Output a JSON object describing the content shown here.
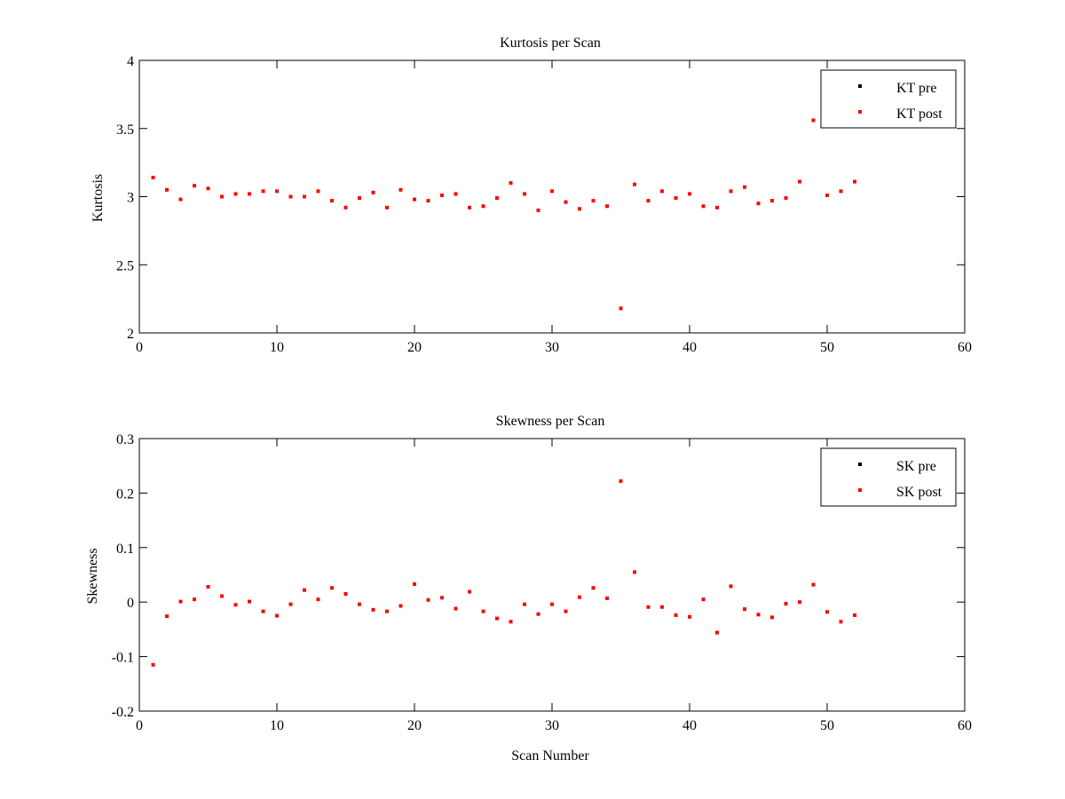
{
  "chart_data": [
    {
      "type": "scatter",
      "title": "Kurtosis per Scan",
      "xlabel": "",
      "ylabel": "Kurtosis",
      "xlim": [
        0,
        60
      ],
      "ylim": [
        2,
        4
      ],
      "xticks": [
        "0",
        "10",
        "20",
        "30",
        "40",
        "50",
        "60"
      ],
      "yticks": [
        "2",
        "2.5",
        "3",
        "3.5",
        "4"
      ],
      "legend_position": "top-right",
      "grid": false,
      "series": [
        {
          "name": "KT pre",
          "color": "#000000",
          "marker": "dot",
          "x": [],
          "y": []
        },
        {
          "name": "KT post",
          "color": "#ff0000",
          "marker": "dot",
          "x": [
            1,
            2,
            3,
            4,
            5,
            6,
            7,
            8,
            9,
            10,
            11,
            12,
            13,
            14,
            15,
            16,
            17,
            18,
            19,
            20,
            21,
            22,
            23,
            24,
            25,
            26,
            27,
            28,
            29,
            30,
            31,
            32,
            33,
            34,
            35,
            36,
            37,
            38,
            39,
            40,
            41,
            42,
            43,
            44,
            45,
            46,
            47,
            48,
            49,
            50,
            51,
            52
          ],
          "y": [
            3.14,
            3.05,
            2.98,
            3.08,
            3.06,
            3.0,
            3.02,
            3.02,
            3.04,
            3.04,
            3.0,
            3.0,
            3.04,
            2.97,
            2.92,
            2.99,
            3.03,
            2.92,
            3.05,
            2.98,
            2.97,
            3.01,
            3.02,
            2.92,
            2.93,
            2.99,
            3.1,
            3.02,
            2.9,
            3.04,
            2.96,
            2.91,
            2.97,
            2.93,
            2.18,
            3.09,
            2.97,
            3.04,
            2.99,
            3.02,
            2.93,
            2.92,
            3.04,
            3.07,
            2.95,
            2.97,
            2.99,
            3.11,
            3.56,
            3.01,
            3.04,
            3.11
          ]
        }
      ]
    },
    {
      "type": "scatter",
      "title": "Skewness per Scan",
      "xlabel": "Scan Number",
      "ylabel": "Skewness",
      "xlim": [
        0,
        60
      ],
      "ylim": [
        -0.2,
        0.3
      ],
      "xticks": [
        "0",
        "10",
        "20",
        "30",
        "40",
        "50",
        "60"
      ],
      "yticks": [
        "-0.2",
        "-0.1",
        "0",
        "0.1",
        "0.2",
        "0.3"
      ],
      "legend_position": "top-right",
      "grid": false,
      "series": [
        {
          "name": "SK pre",
          "color": "#000000",
          "marker": "dot",
          "x": [],
          "y": []
        },
        {
          "name": "SK post",
          "color": "#ff0000",
          "marker": "dot",
          "x": [
            1,
            2,
            3,
            4,
            5,
            6,
            7,
            8,
            9,
            10,
            11,
            12,
            13,
            14,
            15,
            16,
            17,
            18,
            19,
            20,
            21,
            22,
            23,
            24,
            25,
            26,
            27,
            28,
            29,
            30,
            31,
            32,
            33,
            34,
            35,
            36,
            37,
            38,
            39,
            40,
            41,
            42,
            43,
            44,
            45,
            46,
            47,
            48,
            49,
            50,
            51,
            52
          ],
          "y": [
            -0.115,
            -0.026,
            0.001,
            0.005,
            0.028,
            0.011,
            -0.005,
            0.001,
            -0.017,
            -0.025,
            -0.004,
            0.022,
            0.005,
            0.026,
            0.015,
            -0.004,
            -0.014,
            -0.017,
            -0.007,
            0.033,
            0.004,
            0.008,
            -0.012,
            0.019,
            -0.017,
            -0.03,
            -0.036,
            -0.004,
            -0.022,
            -0.004,
            -0.017,
            0.009,
            0.026,
            0.007,
            0.222,
            0.055,
            -0.009,
            -0.009,
            -0.024,
            -0.027,
            0.005,
            -0.056,
            0.029,
            -0.013,
            -0.023,
            -0.028,
            -0.003,
            0.0,
            0.032,
            -0.018,
            -0.036,
            -0.024
          ]
        }
      ]
    }
  ]
}
